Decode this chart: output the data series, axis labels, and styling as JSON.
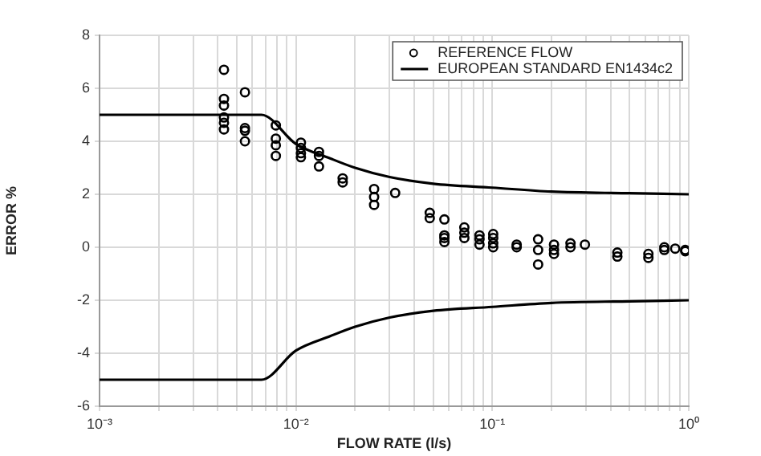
{
  "chart_data": {
    "type": "scatter",
    "xlabel": "FLOW RATE (l/s)",
    "ylabel": "ERROR %",
    "log": "x",
    "grid": true,
    "legend": "top right",
    "xlim": [
      0.001,
      1
    ],
    "ylim": [
      -6,
      8
    ],
    "xticks": [
      {
        "value": 0.001,
        "label": "10⁻³"
      },
      {
        "value": 0.002,
        "label": null
      },
      {
        "value": 0.003,
        "label": null
      },
      {
        "value": 0.004,
        "label": null
      },
      {
        "value": 0.005,
        "label": null
      },
      {
        "value": 0.006,
        "label": null
      },
      {
        "value": 0.007,
        "label": null
      },
      {
        "value": 0.008,
        "label": null
      },
      {
        "value": 0.009,
        "label": null
      },
      {
        "value": 0.01,
        "label": "10⁻²"
      },
      {
        "value": 0.02,
        "label": null
      },
      {
        "value": 0.03,
        "label": null
      },
      {
        "value": 0.04,
        "label": null
      },
      {
        "value": 0.05,
        "label": null
      },
      {
        "value": 0.06,
        "label": null
      },
      {
        "value": 0.07,
        "label": null
      },
      {
        "value": 0.08,
        "label": null
      },
      {
        "value": 0.09,
        "label": null
      },
      {
        "value": 0.1,
        "label": "10⁻¹"
      },
      {
        "value": 0.2,
        "label": null
      },
      {
        "value": 0.3,
        "label": null
      },
      {
        "value": 0.4,
        "label": null
      },
      {
        "value": 0.5,
        "label": null
      },
      {
        "value": 0.6,
        "label": null
      },
      {
        "value": 0.7,
        "label": null
      },
      {
        "value": 0.8,
        "label": null
      },
      {
        "value": 0.9,
        "label": null
      },
      {
        "value": 1,
        "label": "10⁰"
      }
    ],
    "yticks": [
      -6,
      -4,
      -2,
      0,
      2,
      4,
      6,
      8
    ],
    "series": [
      {
        "name": "REFERENCE FLOW",
        "type": "scatter",
        "marker": "circle",
        "color": "#000000",
        "x": [
          0.0043,
          0.0043,
          0.0043,
          0.0043,
          0.0043,
          0.0043,
          0.0055,
          0.0055,
          0.0055,
          0.0055,
          0.0079,
          0.0079,
          0.0079,
          0.0079,
          0.0106,
          0.0106,
          0.0106,
          0.0106,
          0.0131,
          0.0131,
          0.0131,
          0.0173,
          0.0173,
          0.025,
          0.025,
          0.025,
          0.032,
          0.048,
          0.048,
          0.057,
          0.057,
          0.057,
          0.057,
          0.072,
          0.072,
          0.072,
          0.086,
          0.086,
          0.086,
          0.101,
          0.101,
          0.101,
          0.101,
          0.133,
          0.133,
          0.171,
          0.171,
          0.171,
          0.206,
          0.206,
          0.206,
          0.25,
          0.25,
          0.296,
          0.433,
          0.433,
          0.623,
          0.623,
          0.751,
          0.751,
          0.853,
          0.96,
          0.96
        ],
        "values": [
          6.7,
          5.6,
          5.35,
          4.9,
          4.7,
          4.45,
          5.85,
          4.5,
          4.4,
          4.0,
          4.6,
          4.1,
          3.85,
          3.45,
          3.95,
          3.75,
          3.55,
          3.4,
          3.6,
          3.45,
          3.05,
          2.6,
          2.45,
          2.2,
          1.9,
          1.6,
          2.05,
          1.3,
          1.1,
          1.05,
          0.45,
          0.35,
          0.2,
          0.75,
          0.55,
          0.35,
          0.45,
          0.3,
          0.1,
          0.5,
          0.35,
          0.15,
          0.0,
          0.1,
          0.0,
          0.3,
          -0.1,
          -0.65,
          0.1,
          -0.1,
          -0.25,
          0.15,
          0.0,
          0.1,
          -0.2,
          -0.35,
          -0.25,
          -0.4,
          0.0,
          -0.1,
          -0.05,
          -0.1,
          -0.15
        ]
      },
      {
        "name": "EUROPEAN STANDARD EN1434c2",
        "type": "line",
        "marker": "none",
        "line_style": "solid",
        "color": "#000000",
        "x": [
          0.001,
          0.00667,
          0.01,
          0.015,
          0.02,
          0.03,
          0.05,
          0.1,
          0.2,
          0.5,
          1
        ],
        "values": [
          5,
          5,
          3.9,
          3.35,
          3.0,
          2.65,
          2.4,
          2.25,
          2.1,
          2.04,
          2.0
        ]
      },
      {
        "type": "line",
        "marker": "none",
        "line_style": "solid",
        "color": "#000000",
        "x": [
          0.001,
          0.00667,
          0.01,
          0.015,
          0.02,
          0.03,
          0.05,
          0.1,
          0.2,
          0.5,
          1
        ],
        "values": [
          -5,
          -5,
          -3.9,
          -3.35,
          -3.0,
          -2.65,
          -2.4,
          -2.25,
          -2.1,
          -2.04,
          -2.0
        ]
      }
    ]
  }
}
